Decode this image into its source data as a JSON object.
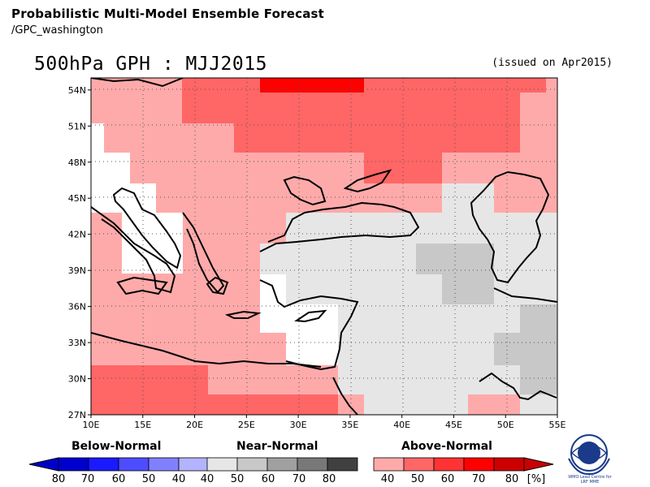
{
  "header": {
    "title": "Probabilistic Multi-Model Ensemble Forecast",
    "subtitle": "/GPC_washington"
  },
  "map": {
    "title": "500hPa GPH : MJJ2015",
    "issued": "(issued on Apr2015)",
    "lon_ticks": [
      "10E",
      "15E",
      "20E",
      "25E",
      "30E",
      "35E",
      "40E",
      "45E",
      "50E",
      "55E"
    ],
    "lat_ticks": [
      "54N",
      "51N",
      "48N",
      "45N",
      "42N",
      "39N",
      "36N",
      "33N",
      "30N",
      "27N"
    ],
    "lon_range": [
      10,
      55
    ],
    "lat_range": [
      27,
      55
    ],
    "grid": "dotted"
  },
  "legend": {
    "below": {
      "heading": "Below-Normal",
      "labels": [
        "80",
        "70",
        "60",
        "50",
        "40"
      ],
      "colors": [
        "#0000cc",
        "#1a1aff",
        "#4d4dff",
        "#8080ff",
        "#b3b3ff"
      ]
    },
    "near": {
      "heading": "Near-Normal",
      "labels": [
        "40",
        "50",
        "60",
        "70",
        "80"
      ],
      "colors": [
        "#e6e6e6",
        "#c8c8c8",
        "#a0a0a0",
        "#787878",
        "#404040"
      ]
    },
    "above": {
      "heading": "Above-Normal",
      "labels": [
        "40",
        "50",
        "60",
        "70",
        "80",
        "[%]"
      ],
      "colors": [
        "#ffaaaa",
        "#ff6666",
        "#ff3333",
        "#ff0000",
        "#cc0000"
      ]
    }
  },
  "logo": {
    "text_line1": "WMO Lead Centre for",
    "text_line2": "LRF MME"
  }
}
